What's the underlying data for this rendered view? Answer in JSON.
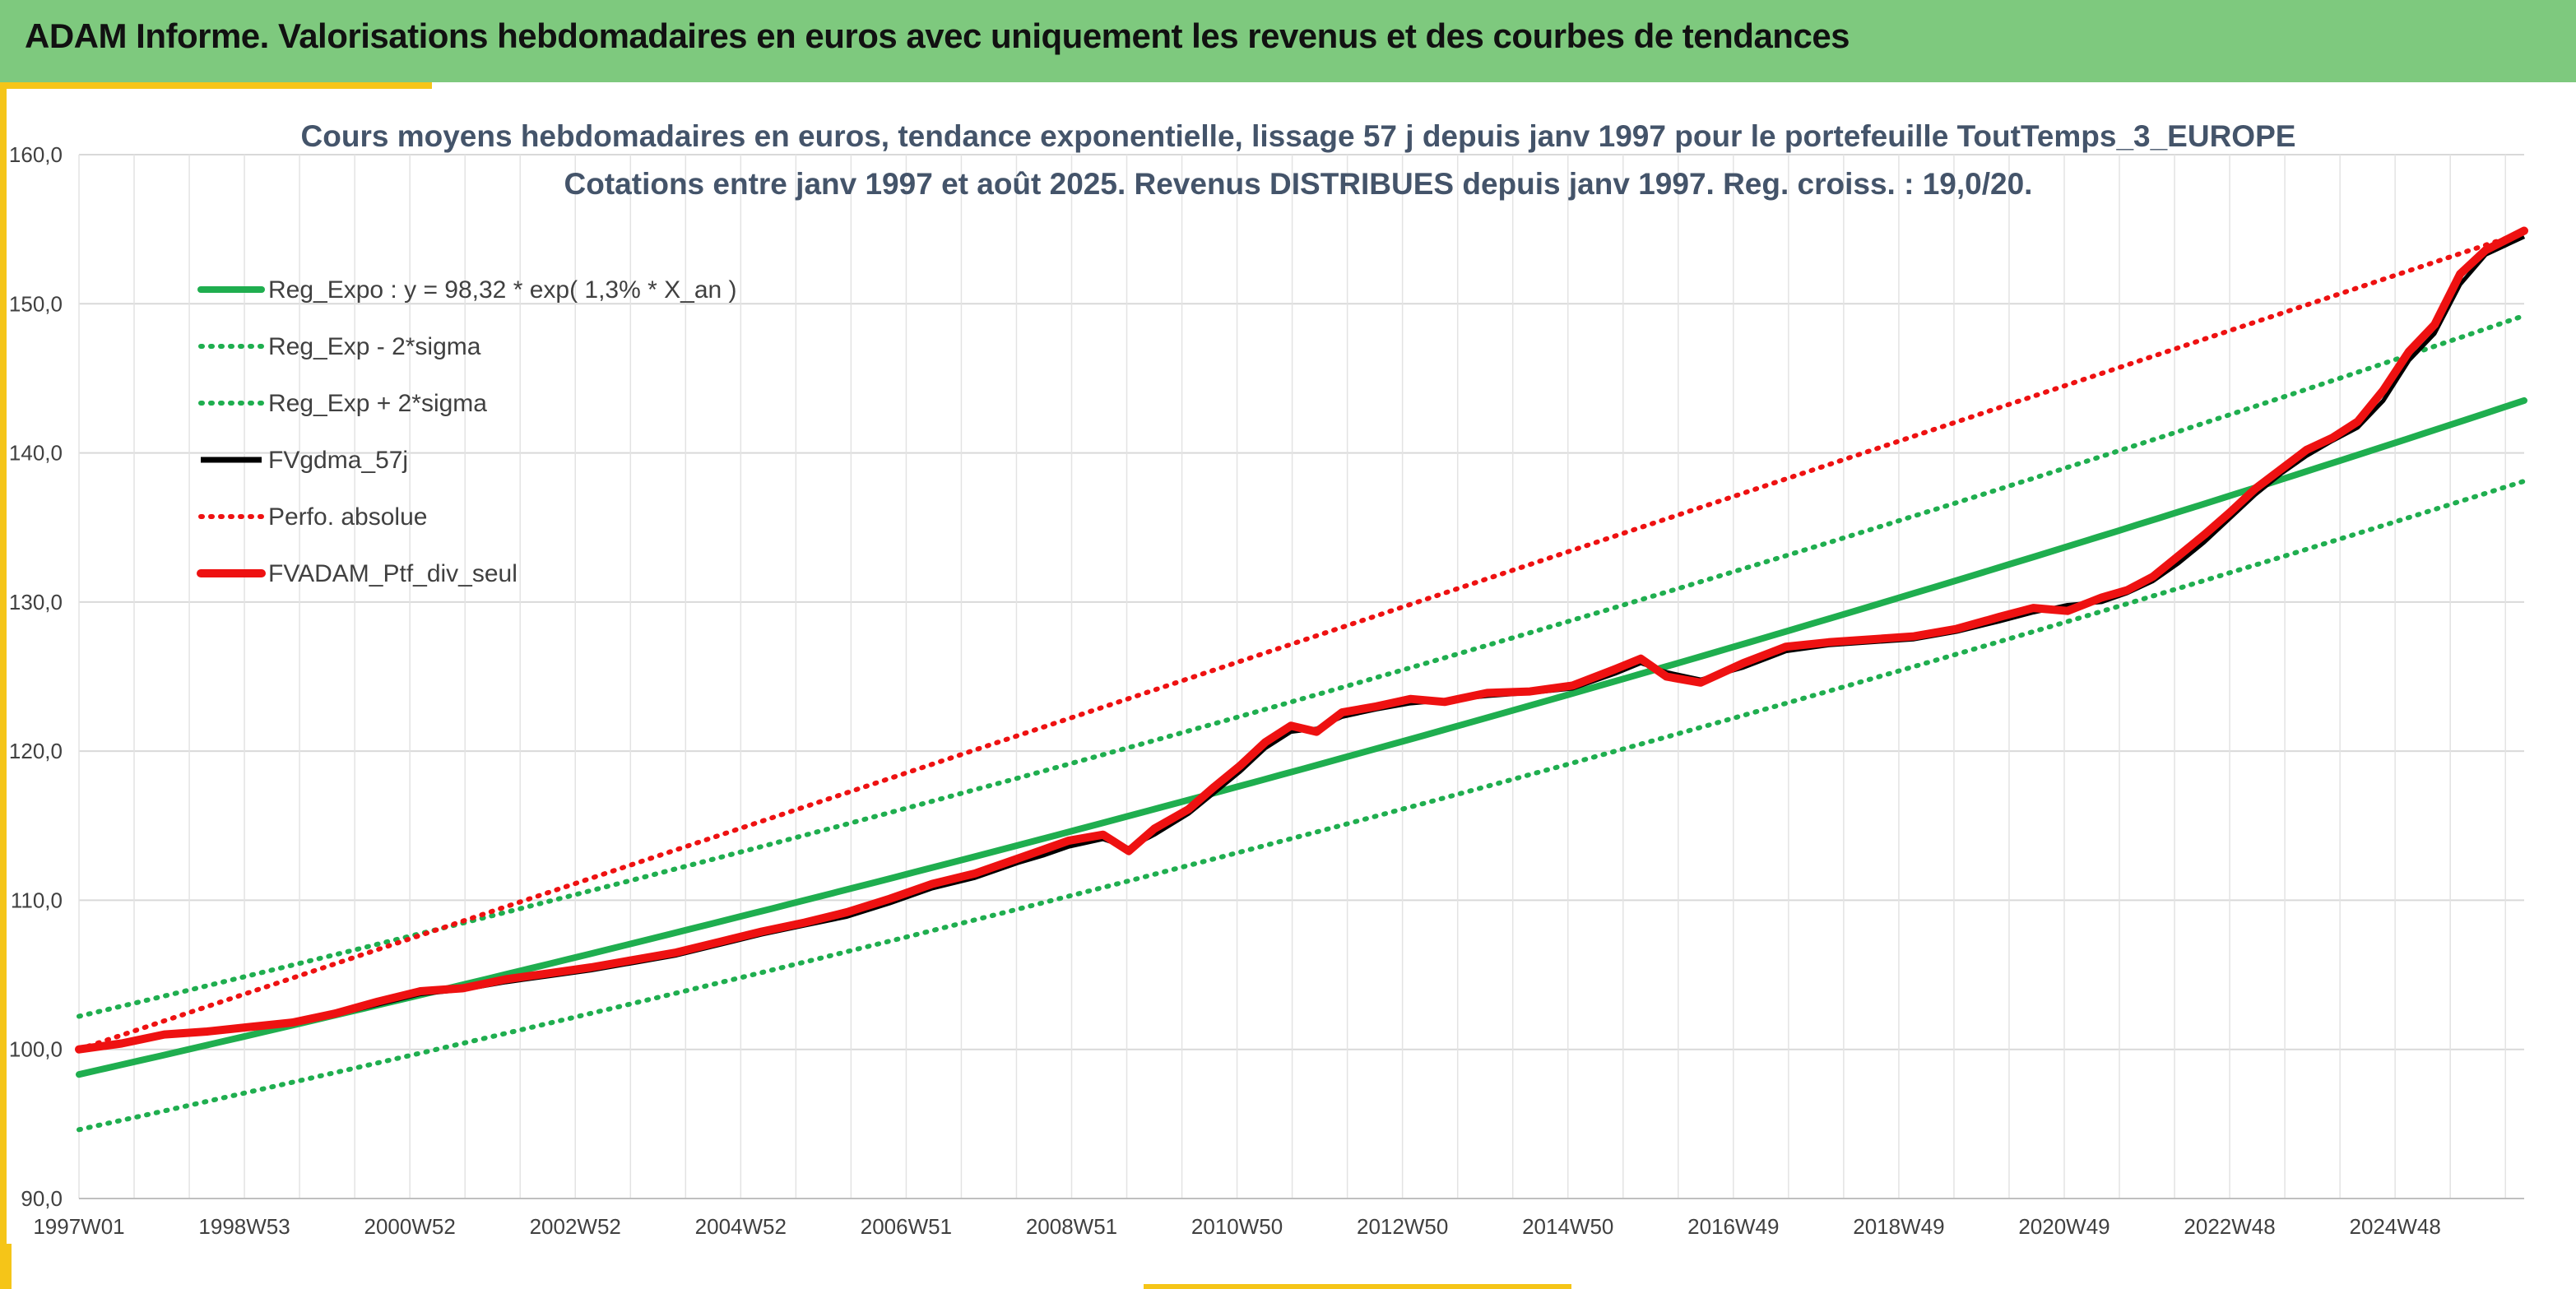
{
  "header": {
    "title": "ADAM Informe. Valorisations hebdomadaires en euros avec uniquement les revenus et des courbes de tendances"
  },
  "colors": {
    "header_bg": "#7ec97e",
    "accent": "#f5c518",
    "trend": "#1fae4f",
    "black": "#000000",
    "red": "#ee1111"
  },
  "chart_data": {
    "type": "line",
    "title": "Cours moyens hebdomadaires en euros, tendance exponentielle, lissage 57 j depuis janv 1997 pour le portefeuille ToutTemps_3_EUROPE",
    "subtitle": "Cotations entre janv 1997 et août 2025. Revenus DISTRIBUES depuis janv 1997. Reg. croiss. : 19,0/20.",
    "x_tick_labels": [
      "1997W01",
      "1998W53",
      "2000W52",
      "2002W52",
      "2004W52",
      "2006W51",
      "2008W51",
      "2010W50",
      "2012W50",
      "2014W50",
      "2016W49",
      "2018W49",
      "2020W49",
      "2022W48",
      "2024W48"
    ],
    "xlim": [
      1997.0,
      2025.65
    ],
    "ylim": [
      90,
      160
    ],
    "y_tick_labels": [
      "90,0",
      "100,0",
      "110,0",
      "120,0",
      "130,0",
      "140,0",
      "150,0",
      "160,0"
    ],
    "grid": true,
    "legend_position": "top-left",
    "series": [
      {
        "name": "Reg_Expo : y = 98,32 * exp( 1,3% *  X_an )",
        "style": "solid",
        "color": "#1fae4f",
        "x": [
          1997.0,
          2001.0,
          2005.0,
          2009.0,
          2013.0,
          2017.0,
          2021.0,
          2025.65
        ],
        "y": [
          98.3,
          103.5,
          109.0,
          115.0,
          121.1,
          127.6,
          134.4,
          142.9
        ]
      },
      {
        "name": "Reg_Exp - 2*sigma",
        "style": "dotted",
        "color": "#1fae4f",
        "x": [
          1997.0,
          2001.0,
          2005.0,
          2009.0,
          2013.0,
          2017.0,
          2021.0,
          2025.65
        ],
        "y": [
          94.6,
          99.6,
          104.9,
          110.6,
          116.5,
          122.8,
          129.3,
          137.5
        ]
      },
      {
        "name": "Reg_Exp + 2*sigma",
        "style": "dotted",
        "color": "#1fae4f",
        "x": [
          1997.0,
          2001.0,
          2005.0,
          2009.0,
          2013.0,
          2017.0,
          2021.0,
          2025.65
        ],
        "y": [
          102.2,
          107.6,
          113.3,
          119.4,
          125.8,
          132.5,
          139.6,
          148.4
        ]
      },
      {
        "name": "FVgdma_57j",
        "style": "solid-thin",
        "color": "#000000",
        "x": [
          1997.0,
          1997.5,
          1998.0,
          1998.5,
          1999.0,
          1999.5,
          2000.0,
          2000.5,
          2001.0,
          2001.5,
          2002.0,
          2002.5,
          2003.0,
          2003.5,
          2004.0,
          2004.5,
          2005.0,
          2005.5,
          2006.0,
          2006.5,
          2007.0,
          2007.5,
          2008.0,
          2008.3,
          2008.6,
          2009.0,
          2009.3,
          2009.6,
          2010.0,
          2010.3,
          2010.6,
          2010.9,
          2011.2,
          2011.5,
          2011.8,
          2012.2,
          2012.6,
          2013.0,
          2013.5,
          2014.0,
          2014.5,
          2015.0,
          2015.3,
          2015.6,
          2016.0,
          2016.5,
          2017.0,
          2017.5,
          2018.0,
          2018.5,
          2019.0,
          2019.5,
          2019.9,
          2020.3,
          2020.7,
          2021.0,
          2021.3,
          2021.6,
          2021.9,
          2022.2,
          2022.5,
          2022.8,
          2023.1,
          2023.4,
          2023.7,
          2024.0,
          2024.3,
          2024.6,
          2024.9,
          2025.2,
          2025.65
        ],
        "y": [
          100.0,
          100.3,
          100.9,
          101.1,
          101.4,
          101.7,
          102.3,
          103.0,
          103.7,
          104.0,
          104.5,
          104.9,
          105.3,
          105.8,
          106.3,
          107.0,
          107.7,
          108.3,
          108.9,
          109.8,
          110.8,
          111.5,
          112.5,
          113.0,
          113.6,
          114.1,
          113.5,
          114.4,
          115.8,
          117.2,
          118.6,
          120.2,
          121.3,
          121.5,
          122.3,
          122.8,
          123.2,
          123.4,
          123.7,
          123.9,
          124.2,
          125.2,
          125.9,
          125.3,
          124.8,
          125.6,
          126.7,
          127.1,
          127.3,
          127.5,
          128.0,
          128.7,
          129.3,
          129.8,
          130.0,
          130.6,
          131.4,
          132.6,
          134.0,
          135.6,
          137.2,
          138.6,
          139.8,
          140.8,
          141.7,
          143.5,
          146.2,
          148.0,
          151.3,
          153.3,
          154.5
        ]
      },
      {
        "name": "Perfo. absolue",
        "style": "dotted",
        "color": "#ee1111",
        "x": [
          1997.0,
          2025.65
        ],
        "y": [
          100.0,
          154.8
        ]
      },
      {
        "name": "FVADAM_Ptf_div_seul",
        "style": "solid-thick",
        "color": "#ee1111",
        "x": [
          1997.0,
          1997.5,
          1998.0,
          1998.5,
          1999.0,
          1999.5,
          2000.0,
          2000.5,
          2001.0,
          2001.5,
          2002.0,
          2002.5,
          2003.0,
          2003.5,
          2004.0,
          2004.5,
          2005.0,
          2005.5,
          2006.0,
          2006.5,
          2007.0,
          2007.5,
          2008.0,
          2008.3,
          2008.6,
          2009.0,
          2009.3,
          2009.6,
          2010.0,
          2010.3,
          2010.6,
          2010.9,
          2011.2,
          2011.5,
          2011.8,
          2012.2,
          2012.6,
          2013.0,
          2013.5,
          2014.0,
          2014.5,
          2015.0,
          2015.3,
          2015.6,
          2016.0,
          2016.5,
          2017.0,
          2017.5,
          2018.0,
          2018.5,
          2019.0,
          2019.5,
          2019.9,
          2020.3,
          2020.7,
          2021.0,
          2021.3,
          2021.6,
          2021.9,
          2022.2,
          2022.5,
          2022.8,
          2023.1,
          2023.4,
          2023.7,
          2024.0,
          2024.3,
          2024.6,
          2024.9,
          2025.2,
          2025.65
        ],
        "y": [
          100.0,
          100.4,
          101.0,
          101.2,
          101.5,
          101.8,
          102.4,
          103.2,
          103.9,
          104.1,
          104.7,
          105.1,
          105.5,
          106.0,
          106.5,
          107.2,
          107.9,
          108.5,
          109.2,
          110.1,
          111.1,
          111.8,
          112.8,
          113.4,
          114.0,
          114.4,
          113.3,
          114.8,
          116.1,
          117.6,
          119.0,
          120.6,
          121.7,
          121.3,
          122.6,
          123.0,
          123.5,
          123.3,
          123.9,
          124.0,
          124.4,
          125.5,
          126.2,
          125.0,
          124.6,
          125.9,
          127.0,
          127.3,
          127.5,
          127.7,
          128.2,
          129.0,
          129.6,
          129.4,
          130.3,
          130.8,
          131.7,
          133.1,
          134.5,
          136.0,
          137.6,
          138.9,
          140.2,
          141.0,
          142.1,
          144.2,
          146.8,
          148.6,
          152.0,
          153.6,
          154.9
        ]
      }
    ]
  }
}
